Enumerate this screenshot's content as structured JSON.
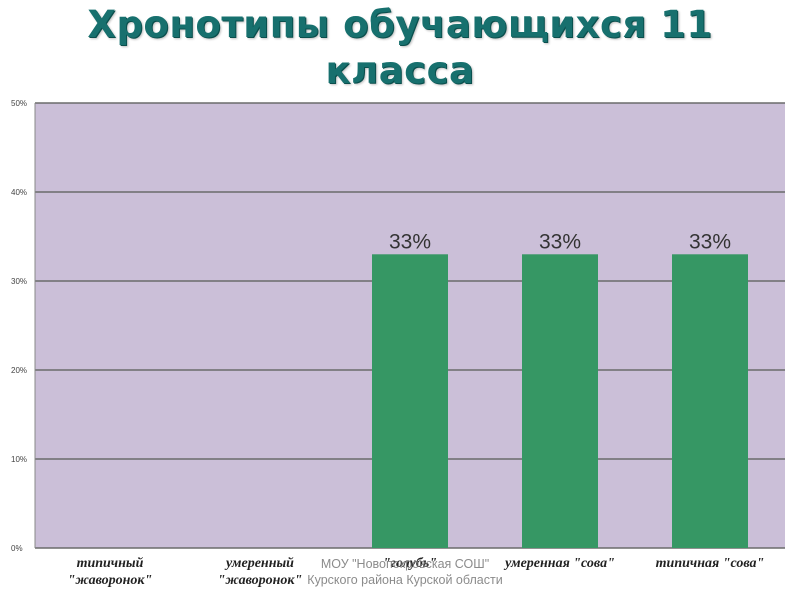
{
  "chart_data": {
    "type": "bar",
    "title_lines": [
      "Хронотипы обучающихся 11",
      "класса"
    ],
    "categories": [
      [
        "типичный",
        "\"жаворонок\""
      ],
      [
        "умеренный",
        "\"жаворонок\""
      ],
      [
        "\"голубь\""
      ],
      [
        "умеренная \"сова\""
      ],
      [
        "типичная \"сова\""
      ]
    ],
    "values": [
      0,
      0,
      33,
      33,
      33
    ],
    "data_labels": [
      "",
      "",
      "33%",
      "33%",
      "33%"
    ],
    "ylim": [
      0,
      50
    ],
    "yticks": [
      "0%",
      "10%",
      "20%",
      "30%",
      "40%",
      "50%"
    ],
    "ytick_values": [
      0,
      10,
      20,
      30,
      40,
      50
    ],
    "grid": true,
    "colors": {
      "plot_bg": "#cbbfd8",
      "bar": "#369764",
      "grid": "#6b6b6b",
      "title": "#17706e"
    }
  },
  "watermark": [
    "МОУ \"Новопокровская СОШ\"",
    "Курского района Курской области"
  ]
}
